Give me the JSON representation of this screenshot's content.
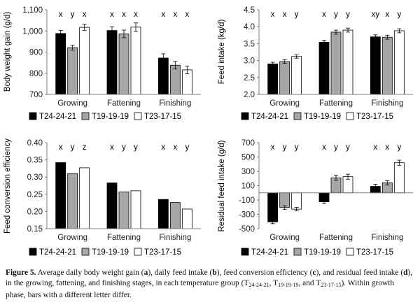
{
  "colors": {
    "black": "#000000",
    "gray": "#a6a6a6",
    "white": "#ffffff",
    "axis": "#7f7f7f"
  },
  "legend": [
    "T24-24-21",
    "T19-19-19",
    "T23-17-15"
  ],
  "chart_data": [
    {
      "type": "bar",
      "panel": "a",
      "ylabel": "Body weight gain (g/d)",
      "categories": [
        "Growing",
        "Fattening",
        "Finishing"
      ],
      "ylim": [
        700,
        1100
      ],
      "yticks": [
        "700",
        "800",
        "900",
        "1,000",
        "1,100"
      ],
      "series": [
        {
          "name": "T24-24-21",
          "values": [
            988,
            1002,
            872
          ],
          "errors": [
            14,
            18,
            20
          ]
        },
        {
          "name": "T19-19-19",
          "values": [
            921,
            986,
            838
          ],
          "errors": [
            12,
            18,
            18
          ]
        },
        {
          "name": "T23-17-15",
          "values": [
            1017,
            1018,
            816
          ],
          "errors": [
            14,
            20,
            18
          ]
        }
      ],
      "letters": [
        [
          "x",
          "y",
          "x"
        ],
        [
          "x",
          "x",
          "x"
        ],
        [
          "x",
          "x",
          "x"
        ]
      ]
    },
    {
      "type": "bar",
      "panel": "b",
      "ylabel": "Feed intake (kg/d)",
      "categories": [
        "Growing",
        "Fattening",
        "Finishing"
      ],
      "ylim": [
        2.0,
        4.5
      ],
      "yticks": [
        "2.0",
        "2.5",
        "3.0",
        "3.5",
        "4.0",
        "4.5"
      ],
      "series": [
        {
          "name": "T24-24-21",
          "values": [
            2.9,
            3.54,
            3.7
          ],
          "errors": [
            0.05,
            0.06,
            0.06
          ]
        },
        {
          "name": "T19-19-19",
          "values": [
            2.97,
            3.84,
            3.69
          ],
          "errors": [
            0.05,
            0.06,
            0.06
          ]
        },
        {
          "name": "T23-17-15",
          "values": [
            3.12,
            3.9,
            3.88
          ],
          "errors": [
            0.05,
            0.06,
            0.06
          ]
        }
      ],
      "letters": [
        [
          "x",
          "x",
          "y"
        ],
        [
          "x",
          "y",
          "y"
        ],
        [
          "xy",
          "x",
          "y"
        ]
      ]
    },
    {
      "type": "bar",
      "panel": "c",
      "ylabel": "Feed conversion efficiency",
      "categories": [
        "Growing",
        "Fattening",
        "Finishing"
      ],
      "ylim": [
        0.15,
        0.4
      ],
      "yticks": [
        "0.15",
        "0.20",
        "0.25",
        "0.30",
        "0.35",
        "0.40"
      ],
      "series": [
        {
          "name": "T24-24-21",
          "values": [
            0.342,
            0.283,
            0.235
          ],
          "errors": [
            0,
            0,
            0
          ]
        },
        {
          "name": "T19-19-19",
          "values": [
            0.31,
            0.257,
            0.226
          ],
          "errors": [
            0,
            0,
            0
          ]
        },
        {
          "name": "T23-17-15",
          "values": [
            0.327,
            0.26,
            0.207
          ],
          "errors": [
            0,
            0,
            0
          ]
        }
      ],
      "letters": [
        [
          "x",
          "y",
          "z"
        ],
        [
          "x",
          "y",
          "y"
        ],
        [
          "x",
          "x",
          "y"
        ]
      ]
    },
    {
      "type": "bar",
      "panel": "d",
      "ylabel": "Residual feed intake (g/d)",
      "categories": [
        "Growing",
        "Fattening",
        "Finishing"
      ],
      "ylim": [
        -500,
        700
      ],
      "yticks": [
        "-500",
        "-300",
        "-100",
        "100",
        "300",
        "500",
        "700"
      ],
      "series": [
        {
          "name": "T24-24-21",
          "values": [
            -405,
            -125,
            90
          ],
          "errors": [
            25,
            25,
            30
          ]
        },
        {
          "name": "T19-19-19",
          "values": [
            -205,
            210,
            140
          ],
          "errors": [
            25,
            35,
            30
          ]
        },
        {
          "name": "T23-17-15",
          "values": [
            -228,
            225,
            420
          ],
          "errors": [
            25,
            35,
            35
          ]
        }
      ],
      "letters": [
        [
          "x",
          "y",
          "y"
        ],
        [
          "x",
          "y",
          "y"
        ],
        [
          "x",
          "x",
          "y"
        ]
      ]
    }
  ],
  "caption": {
    "label": "Figure 5.",
    "t1": "Average daily body weight gain (",
    "a": "a",
    "t2": "), daily feed intake (",
    "b": "b",
    "t3": "), feed conversion efficiency (",
    "c": "c",
    "t4": "), and residual feed intake (",
    "d": "d",
    "t5": "), in the growing, fattening, and finishing stages, in each temperature group (T",
    "s1": "24-24-21",
    "t6": ", T",
    "s2": "19-19-19",
    "t7": ", and T",
    "s3": "23-17-15",
    "t8": "). Within growth phase, bars with a different letter differ."
  }
}
